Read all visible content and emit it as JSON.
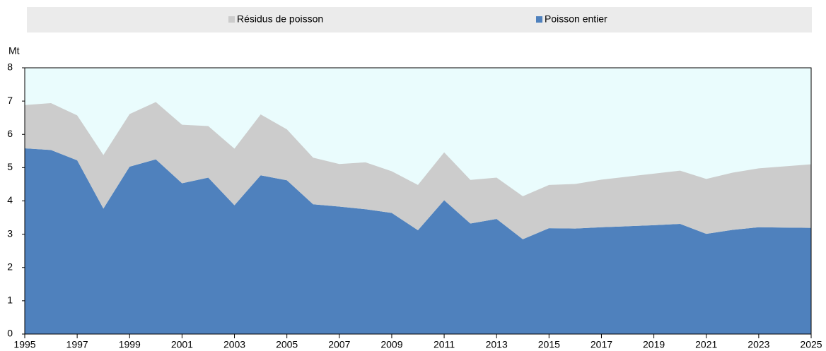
{
  "chart_data": {
    "type": "stacked_area",
    "y_unit_label": "Mt",
    "x": [
      1995,
      1996,
      1997,
      1998,
      1999,
      2000,
      2001,
      2002,
      2003,
      2004,
      2005,
      2006,
      2007,
      2008,
      2009,
      2010,
      2011,
      2012,
      2013,
      2014,
      2015,
      2016,
      2017,
      2018,
      2019,
      2020,
      2021,
      2022,
      2023,
      2024,
      2025
    ],
    "series": [
      {
        "name": "Résidus de poisson",
        "color": "#cccccc",
        "values": [
          1.3,
          1.41,
          1.35,
          1.61,
          1.58,
          1.72,
          1.76,
          1.55,
          1.7,
          1.83,
          1.53,
          1.4,
          1.28,
          1.41,
          1.25,
          1.36,
          1.44,
          1.31,
          1.24,
          1.29,
          1.3,
          1.34,
          1.43,
          1.49,
          1.55,
          1.6,
          1.65,
          1.72,
          1.77,
          1.84,
          1.91
        ]
      },
      {
        "name": "Poisson entier",
        "color": "#4f81bd",
        "values": [
          5.58,
          5.53,
          5.22,
          3.77,
          5.03,
          5.25,
          4.53,
          4.7,
          3.87,
          4.77,
          4.62,
          3.9,
          3.83,
          3.75,
          3.64,
          3.12,
          4.02,
          3.32,
          3.46,
          2.85,
          3.18,
          3.17,
          3.21,
          3.24,
          3.27,
          3.31,
          3.01,
          3.13,
          3.21,
          3.2,
          3.19
        ]
      }
    ],
    "xlim": [
      1995,
      2025
    ],
    "xticks": [
      1995,
      1997,
      1999,
      2001,
      2003,
      2005,
      2007,
      2009,
      2011,
      2013,
      2015,
      2017,
      2019,
      2021,
      2023,
      2025
    ],
    "ylim": [
      0,
      8
    ],
    "yticks": [
      0,
      1,
      2,
      3,
      4,
      5,
      6,
      7,
      8
    ],
    "plot_background": "#eafcfd",
    "legend": "top"
  }
}
